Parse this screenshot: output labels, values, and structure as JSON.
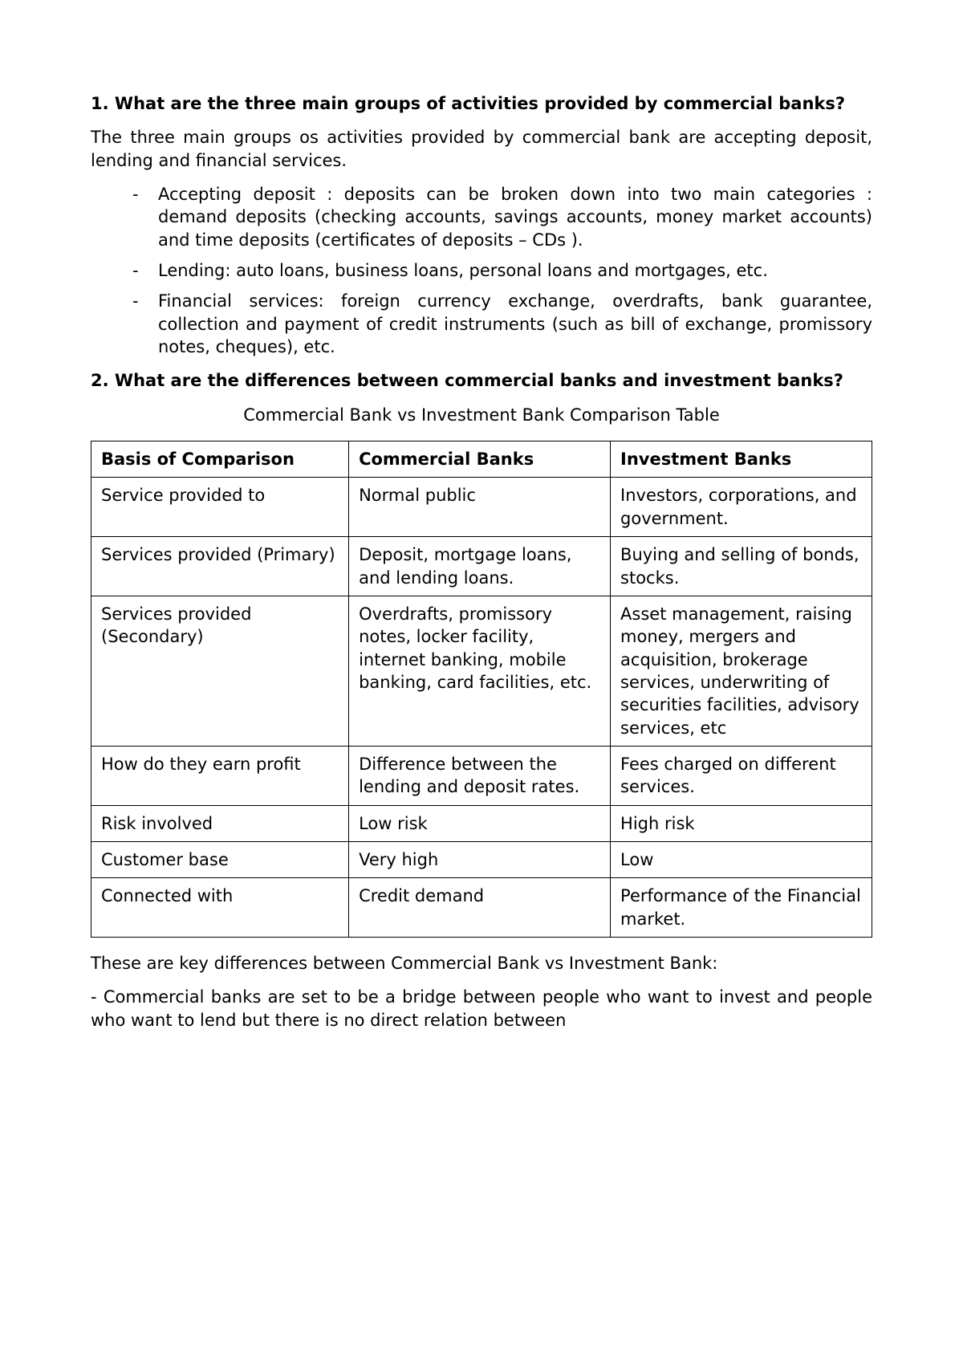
{
  "q1": {
    "number": "1.",
    "title": "What are the three main groups of activities provided by commercial banks?",
    "intro": "The three main groups os activities provided by commercial bank are accepting deposit, lending and financial services.",
    "bullets": [
      "Accepting deposit :  deposits can be broken down into two main categories : demand deposits (checking accounts, savings accounts, money market accounts) and time deposits (certificates of deposits – CDs ).",
      "Lending: auto loans, business loans, personal loans and mortgages, etc.",
      "Financial services: foreign currency exchange, overdrafts, bank guarantee, collection and payment of credit instruments (such as bill of exchange, promissory notes, cheques), etc."
    ]
  },
  "q2": {
    "number": "2.",
    "title": "What are the differences between commercial banks and investment banks?",
    "table_title": "Commercial Bank vs Investment Bank Comparison Table",
    "columns": [
      "Basis of Comparison",
      "Commercial Banks",
      "Investment Banks"
    ],
    "rows": [
      [
        "Service provided to",
        "Normal public",
        "Investors, corporations, and government."
      ],
      [
        "Services provided (Primary)",
        "Deposit, mortgage loans, and lending loans.",
        "Buying and selling of bonds, stocks."
      ],
      [
        "Services provided (Secondary)",
        "Overdrafts, promissory notes, locker facility, internet banking, mobile banking, card facilities, etc.",
        "Asset management, raising money, mergers and acquisition, brokerage services, underwriting of securities facilities, advisory services, etc"
      ],
      [
        "How do they earn profit",
        "Difference between the lending and deposit rates.",
        "Fees charged on different services."
      ],
      [
        "Risk involved",
        "Low risk",
        "High risk"
      ],
      [
        "Customer base",
        "Very high",
        "Low"
      ],
      [
        "Connected with",
        "Credit demand",
        "Performance of the Financial market."
      ]
    ],
    "closing1": "These are key differences between Commercial Bank vs Investment Bank:",
    "closing2": "- Commercial banks are set to be a bridge between people who want to invest and people who want to lend but there is no direct relation between"
  }
}
